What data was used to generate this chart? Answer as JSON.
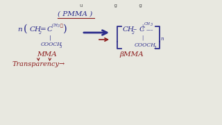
{
  "background_color": "#e8e8e0",
  "title_text": "( PMMA )",
  "monomer_label": "MMA",
  "polymer_label": "βMMA",
  "transparency_label": "Transparency→",
  "arrow_color": "#2b2b8b",
  "red_color": "#8b1a1a",
  "blue_color": "#2b2b8b",
  "underline_color": "#8b1a1a",
  "figsize": [
    3.2,
    1.8
  ],
  "dpi": 100
}
